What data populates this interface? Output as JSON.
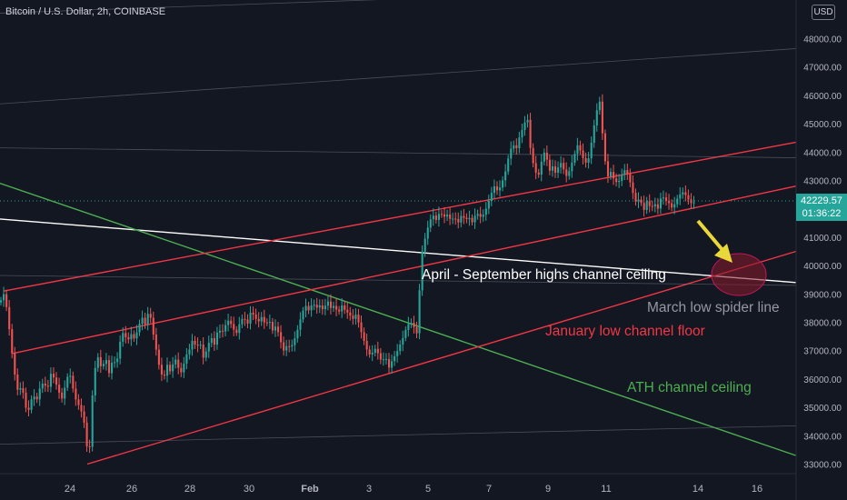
{
  "header": {
    "title": "Bitcoin / U.S. Dollar, 2h, COINBASE",
    "currency": "USD"
  },
  "last_price": {
    "price": "42229.57",
    "countdown": "01:36:22",
    "color": "#26a69a"
  },
  "colors": {
    "background": "#131722",
    "up": "#26a69a",
    "down": "#ef5350",
    "red_channel": "#f23645",
    "green_line": "#4caf50",
    "white_line": "#ffffff",
    "gray_line": "#787b86",
    "ellipse": "#8b1a2b",
    "arrow": "#e8d83a"
  },
  "annotations": [
    {
      "id": "april",
      "text": "April - September highs channel ceiling",
      "color": "#ffffff"
    },
    {
      "id": "march",
      "text": "March low spider line",
      "color": "#9598a1"
    },
    {
      "id": "january",
      "text": "January low channel floor",
      "color": "#f23645"
    },
    {
      "id": "ath",
      "text": "ATH channel ceiling",
      "color": "#4caf50"
    }
  ],
  "chart_data": {
    "type": "candlestick",
    "title": "Bitcoin / U.S. Dollar, 2h, COINBASE",
    "ylim": [
      32700,
      49900
    ],
    "y_ticks": [
      33000,
      34000,
      35000,
      36000,
      37000,
      38000,
      39000,
      40000,
      41000,
      42000,
      43000,
      44000,
      45000,
      46000,
      47000,
      48000
    ],
    "x_ticks": [
      "24",
      "26",
      "28",
      "30",
      "Feb",
      "3",
      "5",
      "7",
      "9",
      "11",
      "14",
      "16"
    ],
    "grid": false,
    "price_path": [
      [
        0,
        38700
      ],
      [
        4,
        39000
      ],
      [
        8,
        38400
      ],
      [
        12,
        37200
      ],
      [
        16,
        36200
      ],
      [
        20,
        35500
      ],
      [
        24,
        35800
      ],
      [
        28,
        35000
      ],
      [
        32,
        34900
      ],
      [
        36,
        35500
      ],
      [
        40,
        35200
      ],
      [
        44,
        35700
      ],
      [
        48,
        35900
      ],
      [
        52,
        35600
      ],
      [
        56,
        36200
      ],
      [
        60,
        36000
      ],
      [
        64,
        35600
      ],
      [
        68,
        35300
      ],
      [
        72,
        35800
      ],
      [
        76,
        36300
      ],
      [
        80,
        35700
      ],
      [
        84,
        35200
      ],
      [
        88,
        35000
      ],
      [
        92,
        34600
      ],
      [
        96,
        33500
      ],
      [
        98,
        33100
      ],
      [
        100,
        34800
      ],
      [
        104,
        36300
      ],
      [
        108,
        36800
      ],
      [
        112,
        36300
      ],
      [
        116,
        36800
      ],
      [
        120,
        36200
      ],
      [
        124,
        36700
      ],
      [
        128,
        36500
      ],
      [
        132,
        37300
      ],
      [
        136,
        37700
      ],
      [
        140,
        37300
      ],
      [
        144,
        37600
      ],
      [
        148,
        37400
      ],
      [
        152,
        37800
      ],
      [
        156,
        38200
      ],
      [
        160,
        37900
      ],
      [
        164,
        38500
      ],
      [
        168,
        37700
      ],
      [
        172,
        37000
      ],
      [
        176,
        36300
      ],
      [
        180,
        36000
      ],
      [
        184,
        36500
      ],
      [
        188,
        36200
      ],
      [
        192,
        36800
      ],
      [
        196,
        36400
      ],
      [
        200,
        36200
      ],
      [
        204,
        36800
      ],
      [
        208,
        37000
      ],
      [
        212,
        37400
      ],
      [
        216,
        37100
      ],
      [
        220,
        37300
      ],
      [
        224,
        36700
      ],
      [
        228,
        37100
      ],
      [
        232,
        37500
      ],
      [
        236,
        37200
      ],
      [
        240,
        37800
      ],
      [
        244,
        37600
      ],
      [
        248,
        37900
      ],
      [
        252,
        38100
      ],
      [
        256,
        37800
      ],
      [
        260,
        37600
      ],
      [
        264,
        38000
      ],
      [
        268,
        38200
      ],
      [
        272,
        37900
      ],
      [
        276,
        38400
      ],
      [
        280,
        38200
      ],
      [
        284,
        38000
      ],
      [
        288,
        38200
      ],
      [
        292,
        37900
      ],
      [
        296,
        38100
      ],
      [
        300,
        37700
      ],
      [
        304,
        37900
      ],
      [
        308,
        37400
      ],
      [
        312,
        37000
      ],
      [
        316,
        37200
      ],
      [
        320,
        37100
      ],
      [
        324,
        37400
      ],
      [
        328,
        37800
      ],
      [
        332,
        38300
      ],
      [
        336,
        38600
      ],
      [
        340,
        38400
      ],
      [
        344,
        38700
      ],
      [
        348,
        38500
      ],
      [
        352,
        38600
      ],
      [
        356,
        38400
      ],
      [
        360,
        38800
      ],
      [
        364,
        38500
      ],
      [
        368,
        38600
      ],
      [
        372,
        38300
      ],
      [
        376,
        38600
      ],
      [
        380,
        38400
      ],
      [
        384,
        38300
      ],
      [
        388,
        38100
      ],
      [
        392,
        38300
      ],
      [
        396,
        37800
      ],
      [
        400,
        37400
      ],
      [
        404,
        37000
      ],
      [
        408,
        36800
      ],
      [
        412,
        37100
      ],
      [
        416,
        36900
      ],
      [
        420,
        36600
      ],
      [
        424,
        36800
      ],
      [
        428,
        36400
      ],
      [
        432,
        36700
      ],
      [
        436,
        36900
      ],
      [
        440,
        37200
      ],
      [
        444,
        37500
      ],
      [
        448,
        37900
      ],
      [
        452,
        38000
      ],
      [
        456,
        37800
      ],
      [
        460,
        37500
      ],
      [
        462,
        39600
      ],
      [
        464,
        40400
      ],
      [
        468,
        41000
      ],
      [
        472,
        41500
      ],
      [
        476,
        41800
      ],
      [
        480,
        41600
      ],
      [
        484,
        41900
      ],
      [
        488,
        41700
      ],
      [
        492,
        41800
      ],
      [
        496,
        41600
      ],
      [
        500,
        41700
      ],
      [
        504,
        41500
      ],
      [
        508,
        41800
      ],
      [
        512,
        41600
      ],
      [
        516,
        41700
      ],
      [
        520,
        41500
      ],
      [
        524,
        41900
      ],
      [
        528,
        41700
      ],
      [
        532,
        41800
      ],
      [
        536,
        42100
      ],
      [
        540,
        42500
      ],
      [
        544,
        42800
      ],
      [
        548,
        42600
      ],
      [
        552,
        42900
      ],
      [
        556,
        43300
      ],
      [
        560,
        43900
      ],
      [
        564,
        44300
      ],
      [
        568,
        44100
      ],
      [
        572,
        44600
      ],
      [
        576,
        44900
      ],
      [
        580,
        45300
      ],
      [
        584,
        44000
      ],
      [
        588,
        43400
      ],
      [
        592,
        43100
      ],
      [
        596,
        43700
      ],
      [
        600,
        44100
      ],
      [
        604,
        43300
      ],
      [
        608,
        43500
      ],
      [
        612,
        43200
      ],
      [
        616,
        43700
      ],
      [
        620,
        43400
      ],
      [
        624,
        43100
      ],
      [
        628,
        43500
      ],
      [
        632,
        43900
      ],
      [
        636,
        44300
      ],
      [
        640,
        43900
      ],
      [
        644,
        43600
      ],
      [
        648,
        43800
      ],
      [
        652,
        44600
      ],
      [
        656,
        45400
      ],
      [
        660,
        45800
      ],
      [
        664,
        44200
      ],
      [
        668,
        43100
      ],
      [
        672,
        43300
      ],
      [
        676,
        43000
      ],
      [
        680,
        42900
      ],
      [
        684,
        43200
      ],
      [
        688,
        43400
      ],
      [
        692,
        43100
      ],
      [
        696,
        42600
      ],
      [
        700,
        42200
      ],
      [
        704,
        42400
      ],
      [
        708,
        41900
      ],
      [
        712,
        42300
      ],
      [
        716,
        42000
      ],
      [
        720,
        42200
      ],
      [
        724,
        42000
      ],
      [
        728,
        42500
      ],
      [
        732,
        42300
      ],
      [
        736,
        42200
      ],
      [
        740,
        42000
      ],
      [
        744,
        42300
      ],
      [
        748,
        42500
      ],
      [
        752,
        42600
      ],
      [
        756,
        42400
      ],
      [
        760,
        42200
      ],
      [
        764,
        42229.57
      ]
    ],
    "trend_lines": [
      {
        "name": "April - September highs channel ceiling",
        "color": "#ffffff",
        "points": [
          [
            0,
            41640
          ],
          [
            876,
            39400
          ]
        ]
      },
      {
        "name": "ATH channel ceiling",
        "color": "#4caf50",
        "points": [
          [
            0,
            42900
          ],
          [
            876,
            33300
          ]
        ]
      },
      {
        "name": "January low channel floor",
        "color": "#f23645",
        "points": [
          [
            96,
            33000
          ],
          [
            876,
            40500
          ]
        ]
      },
      {
        "name": "",
        "color": "#f23645",
        "points": [
          [
            14,
            36900
          ],
          [
            876,
            42800
          ]
        ]
      },
      {
        "name": "",
        "color": "#f23645",
        "points": [
          [
            4,
            39100
          ],
          [
            876,
            44350
          ]
        ]
      },
      {
        "name": "",
        "color": "#787b86",
        "points": [
          [
            0,
            39650
          ],
          [
            876,
            39300
          ]
        ]
      },
      {
        "name": "",
        "color": "#787b86",
        "points": [
          [
            0,
            44150
          ],
          [
            876,
            43800
          ]
        ]
      },
      {
        "name": "",
        "color": "#787b86",
        "points": [
          [
            0,
            45700
          ],
          [
            876,
            47650
          ]
        ]
      },
      {
        "name": "",
        "color": "#787b86",
        "points": [
          [
            0,
            48900
          ],
          [
            876,
            49900
          ]
        ]
      },
      {
        "name": "",
        "color": "#787b86",
        "points": [
          [
            0,
            33700
          ],
          [
            876,
            34350
          ]
        ]
      }
    ]
  }
}
